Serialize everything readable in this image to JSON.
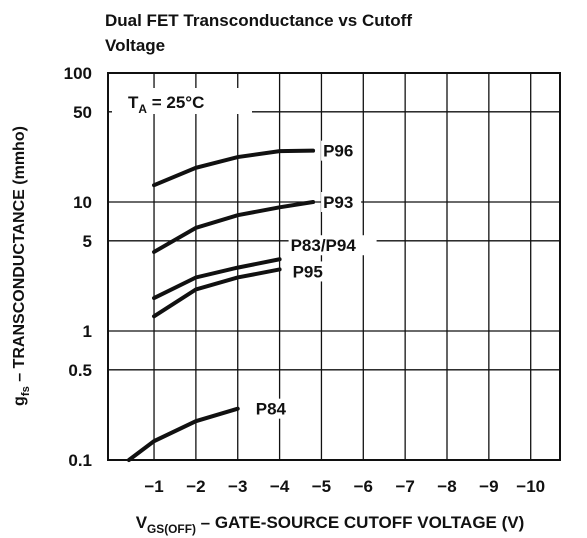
{
  "chart_data": {
    "type": "line",
    "title": [
      "Dual FET Transconductance vs Cutoff",
      "Voltage"
    ],
    "annotation": {
      "text": "T",
      "sub": "A",
      "rest": " = 25°C"
    },
    "x_label": {
      "text": "V",
      "sub": "GS(OFF)",
      "rest": " – GATE-SOURCE CUTOFF VOLTAGE (V)"
    },
    "y_label": {
      "text": "g",
      "sub": "fs",
      "rest": " – TRANSCONDUCTANCE (mmho)"
    },
    "xlim": [
      0.1,
      -10.7
    ],
    "ylim": [
      0.1,
      100
    ],
    "log_y": true,
    "grid": true,
    "xticks": [
      {
        "value": -1,
        "label": "−1"
      },
      {
        "value": -2,
        "label": "−2"
      },
      {
        "value": -3,
        "label": "−3"
      },
      {
        "value": -4,
        "label": "−4"
      },
      {
        "value": -5,
        "label": "−5"
      },
      {
        "value": -6,
        "label": "−6"
      },
      {
        "value": -7,
        "label": "−7"
      },
      {
        "value": -8,
        "label": "−8"
      },
      {
        "value": -9,
        "label": "−9"
      },
      {
        "value": -10,
        "label": "−10"
      }
    ],
    "yticks": [
      0.1,
      0.5,
      1,
      5,
      10,
      50,
      100
    ],
    "series": [
      {
        "name": "P96",
        "color": "#111",
        "x": [
          -1,
          -2,
          -3,
          -4,
          -4.8
        ],
        "values": [
          13.5,
          18.4,
          22.3,
          24.8,
          25
        ]
      },
      {
        "name": "P93",
        "color": "#111",
        "x": [
          -1,
          -2,
          -3,
          -4,
          -4.8
        ],
        "values": [
          4.1,
          6.3,
          7.9,
          9.1,
          10
        ]
      },
      {
        "name": "P83/P94",
        "color": "#111",
        "x": [
          -1,
          -2,
          -3,
          -4
        ],
        "values": [
          1.8,
          2.6,
          3.1,
          3.6
        ]
      },
      {
        "name": "P95",
        "color": "#111",
        "x": [
          -1,
          -2,
          -3,
          -4
        ],
        "values": [
          1.3,
          2.1,
          2.6,
          3.0
        ]
      },
      {
        "name": "P84",
        "color": "#111",
        "x": [
          -0.4,
          -1,
          -2,
          -3
        ],
        "values": [
          0.1,
          0.14,
          0.2,
          0.25
        ]
      }
    ]
  }
}
